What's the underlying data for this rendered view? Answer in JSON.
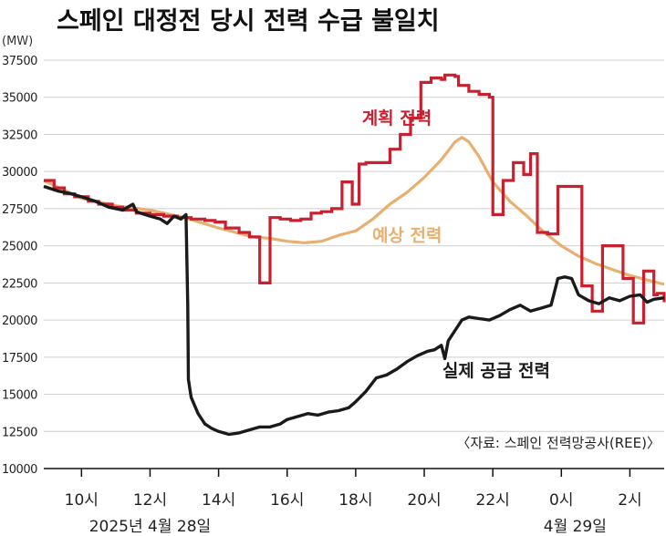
{
  "title": "스페인 대정전 당시 전력 수급 불일치",
  "unit": "(MW)",
  "source": "〈자료: 스페인 전력망공사(REE)〉",
  "colors": {
    "planned": "#c8202e",
    "forecast": "#e8b070",
    "actual": "#1a1a1a",
    "grid": "#cfcfcf",
    "axis": "#111111"
  },
  "chart_data": {
    "type": "line",
    "xlim": [
      8.9,
      27.0
    ],
    "ylim": [
      10000,
      37500
    ],
    "x_ticks": [
      {
        "x": 10,
        "label": "10시"
      },
      {
        "x": 12,
        "label": "12시"
      },
      {
        "x": 14,
        "label": "14시"
      },
      {
        "x": 16,
        "label": "16시"
      },
      {
        "x": 18,
        "label": "18시"
      },
      {
        "x": 20,
        "label": "20시"
      },
      {
        "x": 22,
        "label": "22시"
      },
      {
        "x": 24,
        "label": "0시"
      },
      {
        "x": 26,
        "label": "2시"
      }
    ],
    "y_ticks": [
      {
        "y": 10000,
        "label": "10000"
      },
      {
        "y": 12500,
        "label": "12500"
      },
      {
        "y": 15000,
        "label": "15000"
      },
      {
        "y": 17500,
        "label": "17500"
      },
      {
        "y": 20000,
        "label": "20000"
      },
      {
        "y": 22500,
        "label": "22500"
      },
      {
        "y": 25000,
        "label": "25000"
      },
      {
        "y": 27500,
        "label": "27500"
      },
      {
        "y": 30000,
        "label": "30000"
      },
      {
        "y": 32500,
        "label": "32500"
      },
      {
        "y": 35000,
        "label": "35000"
      },
      {
        "y": 37500,
        "label": "37500"
      }
    ],
    "date_labels": [
      {
        "x": 12.0,
        "label": "2025년 4월 28일"
      },
      {
        "x": 24.4,
        "label": "4월 29일"
      }
    ],
    "series": [
      {
        "name": "계획 전력",
        "key": "planned",
        "step": true,
        "points": [
          [
            8.9,
            29400
          ],
          [
            9.2,
            28900
          ],
          [
            9.5,
            28500
          ],
          [
            9.8,
            28300
          ],
          [
            10.2,
            28000
          ],
          [
            10.5,
            27800
          ],
          [
            10.9,
            27600
          ],
          [
            11.2,
            27400
          ],
          [
            11.6,
            27200
          ],
          [
            12.0,
            27100
          ],
          [
            12.4,
            27000
          ],
          [
            12.8,
            26900
          ],
          [
            13.2,
            26800
          ],
          [
            13.6,
            26700
          ],
          [
            13.9,
            26600
          ],
          [
            14.2,
            26200
          ],
          [
            14.6,
            25900
          ],
          [
            14.9,
            25600
          ],
          [
            15.2,
            22500
          ],
          [
            15.5,
            26900
          ],
          [
            15.8,
            26800
          ],
          [
            16.1,
            26700
          ],
          [
            16.4,
            26800
          ],
          [
            16.7,
            27200
          ],
          [
            17.0,
            27300
          ],
          [
            17.3,
            27500
          ],
          [
            17.6,
            29300
          ],
          [
            17.9,
            27800
          ],
          [
            18.1,
            30500
          ],
          [
            18.3,
            30600
          ],
          [
            18.6,
            30600
          ],
          [
            19.0,
            31500
          ],
          [
            19.3,
            32500
          ],
          [
            19.6,
            33600
          ],
          [
            19.9,
            36000
          ],
          [
            20.2,
            36300
          ],
          [
            20.5,
            36200
          ],
          [
            20.6,
            36500
          ],
          [
            20.9,
            36400
          ],
          [
            21.0,
            35800
          ],
          [
            21.3,
            35400
          ],
          [
            21.6,
            35200
          ],
          [
            21.9,
            35000
          ],
          [
            22.0,
            27100
          ],
          [
            22.3,
            29400
          ],
          [
            22.6,
            30600
          ],
          [
            22.9,
            29800
          ],
          [
            23.1,
            31200
          ],
          [
            23.3,
            25900
          ],
          [
            23.6,
            25800
          ],
          [
            23.9,
            29000
          ],
          [
            24.3,
            29000
          ],
          [
            24.6,
            22300
          ],
          [
            24.9,
            20600
          ],
          [
            25.2,
            25000
          ],
          [
            25.5,
            25000
          ],
          [
            25.8,
            22800
          ],
          [
            26.1,
            19800
          ],
          [
            26.4,
            23300
          ],
          [
            26.7,
            21700
          ],
          [
            26.8,
            21800
          ],
          [
            27.0,
            21200
          ]
        ]
      },
      {
        "name": "예상 전력",
        "key": "forecast",
        "step": false,
        "points": [
          [
            8.9,
            29400
          ],
          [
            10.0,
            28200
          ],
          [
            11.0,
            27700
          ],
          [
            12.0,
            27400
          ],
          [
            13.0,
            26900
          ],
          [
            14.0,
            26200
          ],
          [
            15.0,
            25600
          ],
          [
            15.5,
            25500
          ],
          [
            16.0,
            25300
          ],
          [
            16.5,
            25200
          ],
          [
            17.0,
            25300
          ],
          [
            17.5,
            25700
          ],
          [
            18.0,
            26000
          ],
          [
            18.5,
            26800
          ],
          [
            19.0,
            27800
          ],
          [
            19.5,
            28600
          ],
          [
            20.0,
            29600
          ],
          [
            20.5,
            30800
          ],
          [
            20.9,
            32000
          ],
          [
            21.1,
            32300
          ],
          [
            21.3,
            32000
          ],
          [
            21.6,
            31000
          ],
          [
            22.0,
            29300
          ],
          [
            22.5,
            28000
          ],
          [
            23.0,
            27000
          ],
          [
            23.5,
            25900
          ],
          [
            24.0,
            25000
          ],
          [
            24.5,
            24300
          ],
          [
            25.0,
            23800
          ],
          [
            25.5,
            23400
          ],
          [
            26.0,
            23000
          ],
          [
            26.5,
            22700
          ],
          [
            27.0,
            22400
          ]
        ]
      },
      {
        "name": "실제 공급 전력",
        "key": "actual",
        "step": false,
        "points": [
          [
            8.9,
            29000
          ],
          [
            9.3,
            28700
          ],
          [
            9.7,
            28500
          ],
          [
            10.0,
            28300
          ],
          [
            10.4,
            28000
          ],
          [
            10.8,
            27600
          ],
          [
            11.2,
            27400
          ],
          [
            11.5,
            27800
          ],
          [
            11.6,
            27300
          ],
          [
            12.0,
            27000
          ],
          [
            12.3,
            26800
          ],
          [
            12.5,
            26500
          ],
          [
            12.7,
            27000
          ],
          [
            12.9,
            26800
          ],
          [
            13.05,
            27100
          ],
          [
            13.1,
            21000
          ],
          [
            13.12,
            16000
          ],
          [
            13.2,
            14800
          ],
          [
            13.4,
            13700
          ],
          [
            13.6,
            13000
          ],
          [
            13.8,
            12700
          ],
          [
            14.0,
            12500
          ],
          [
            14.3,
            12300
          ],
          [
            14.6,
            12400
          ],
          [
            14.9,
            12600
          ],
          [
            15.2,
            12800
          ],
          [
            15.5,
            12800
          ],
          [
            15.8,
            13000
          ],
          [
            16.0,
            13300
          ],
          [
            16.3,
            13500
          ],
          [
            16.6,
            13700
          ],
          [
            16.9,
            13600
          ],
          [
            17.2,
            13800
          ],
          [
            17.5,
            13900
          ],
          [
            17.8,
            14100
          ],
          [
            18.0,
            14500
          ],
          [
            18.3,
            15200
          ],
          [
            18.6,
            16100
          ],
          [
            18.9,
            16300
          ],
          [
            19.2,
            16700
          ],
          [
            19.5,
            17200
          ],
          [
            19.8,
            17600
          ],
          [
            20.1,
            17900
          ],
          [
            20.3,
            18000
          ],
          [
            20.5,
            18300
          ],
          [
            20.6,
            17400
          ],
          [
            20.7,
            18600
          ],
          [
            20.9,
            19300
          ],
          [
            21.1,
            20000
          ],
          [
            21.3,
            20200
          ],
          [
            21.6,
            20100
          ],
          [
            21.9,
            20000
          ],
          [
            22.2,
            20300
          ],
          [
            22.5,
            20700
          ],
          [
            22.8,
            21000
          ],
          [
            23.1,
            20600
          ],
          [
            23.4,
            20800
          ],
          [
            23.7,
            21000
          ],
          [
            23.9,
            22800
          ],
          [
            24.1,
            22900
          ],
          [
            24.3,
            22800
          ],
          [
            24.5,
            21700
          ],
          [
            24.8,
            21300
          ],
          [
            25.1,
            21100
          ],
          [
            25.4,
            21500
          ],
          [
            25.7,
            21300
          ],
          [
            26.0,
            21600
          ],
          [
            26.3,
            21700
          ],
          [
            26.5,
            21200
          ],
          [
            26.7,
            21400
          ],
          [
            27.0,
            21500
          ]
        ]
      }
    ],
    "annotations": [
      {
        "series": "planned",
        "text": "계획 전력",
        "at": [
          19.2,
          33200
        ]
      },
      {
        "series": "forecast",
        "text": "예상 전력",
        "at": [
          19.5,
          25300
        ]
      },
      {
        "series": "actual",
        "text": "실제 공급 전력",
        "at": [
          22.1,
          16200
        ]
      }
    ]
  }
}
